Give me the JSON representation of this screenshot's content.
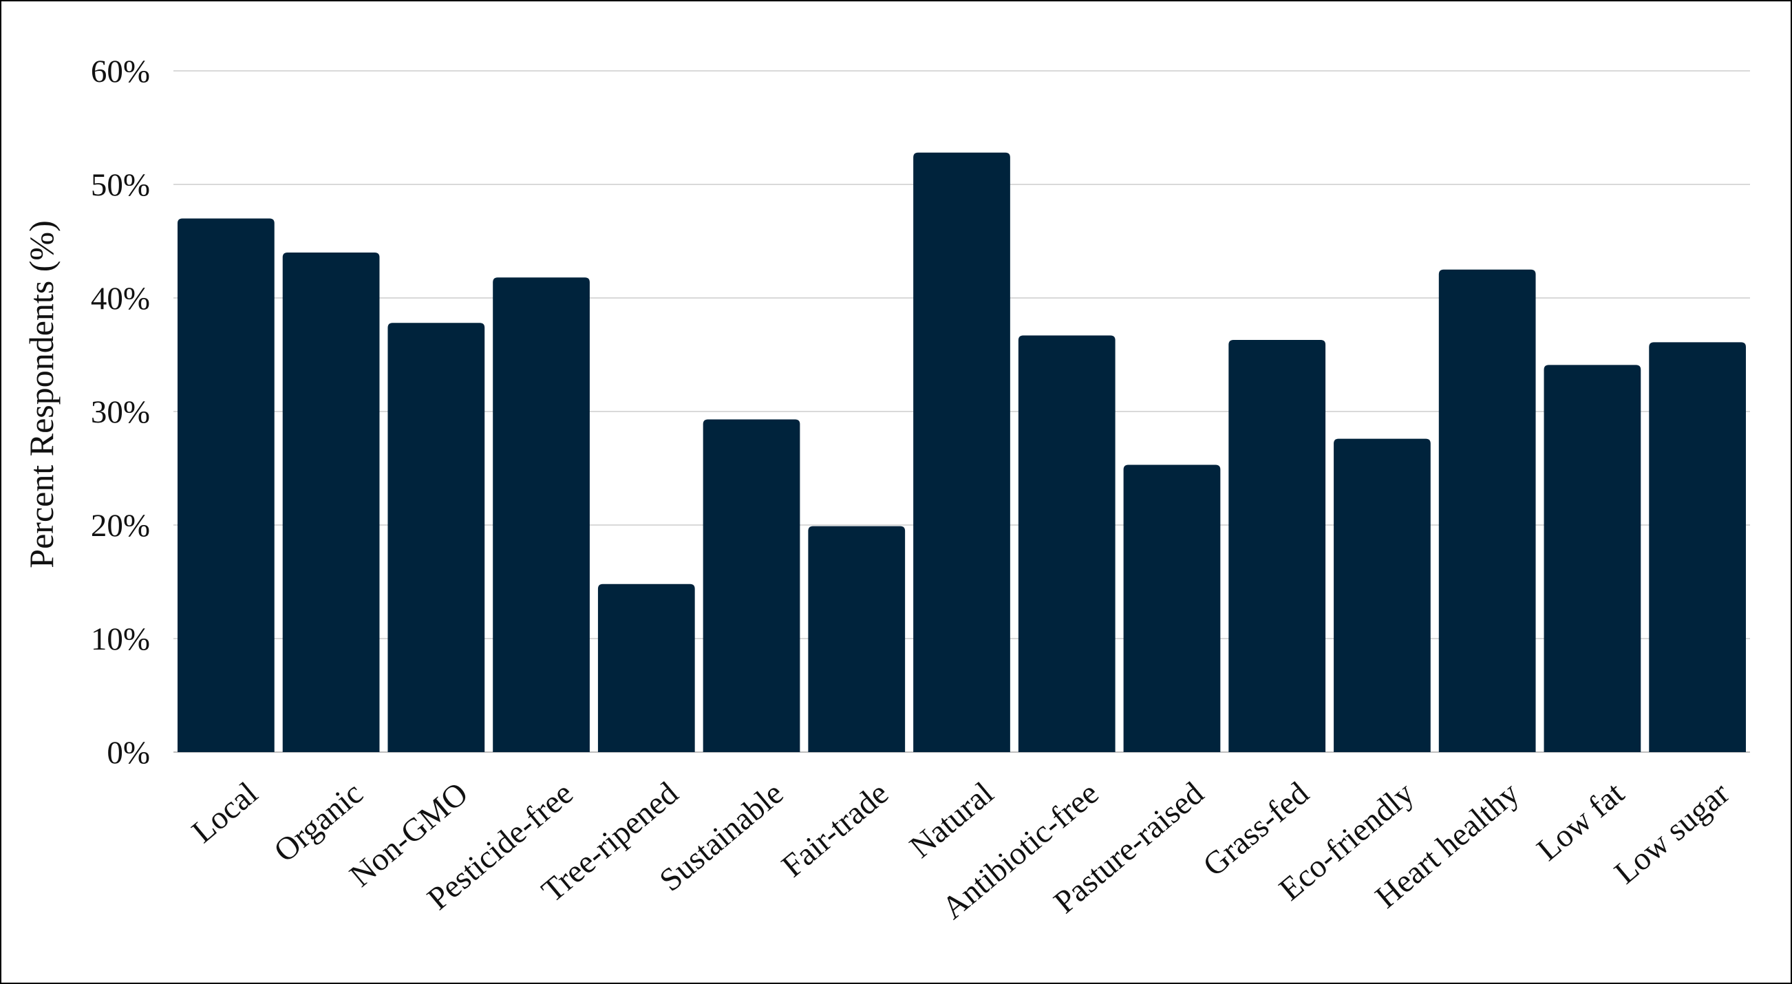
{
  "chart_data": {
    "type": "bar",
    "title": "",
    "xlabel": "",
    "ylabel": "Percent Respondents (%)",
    "categories": [
      "Local",
      "Organic",
      "Non-GMO",
      "Pesticide-free",
      "Tree-ripened",
      "Sustainable",
      "Fair-trade",
      "Natural",
      "Antibiotic-free",
      "Pasture-raised",
      "Grass-fed",
      "Eco-friendly",
      "Heart healthy",
      "Low fat",
      "Low sugar"
    ],
    "values": [
      47,
      44,
      37.8,
      41.8,
      14.8,
      29.3,
      19.9,
      52.8,
      36.7,
      25.3,
      36.3,
      27.6,
      42.5,
      34.1,
      36.1
    ],
    "ylim": [
      0,
      60
    ],
    "yticks": [
      "0%",
      "10%",
      "20%",
      "30%",
      "40%",
      "50%",
      "60%"
    ],
    "grid": true,
    "legend": "none",
    "bar_color": "#00233c"
  }
}
